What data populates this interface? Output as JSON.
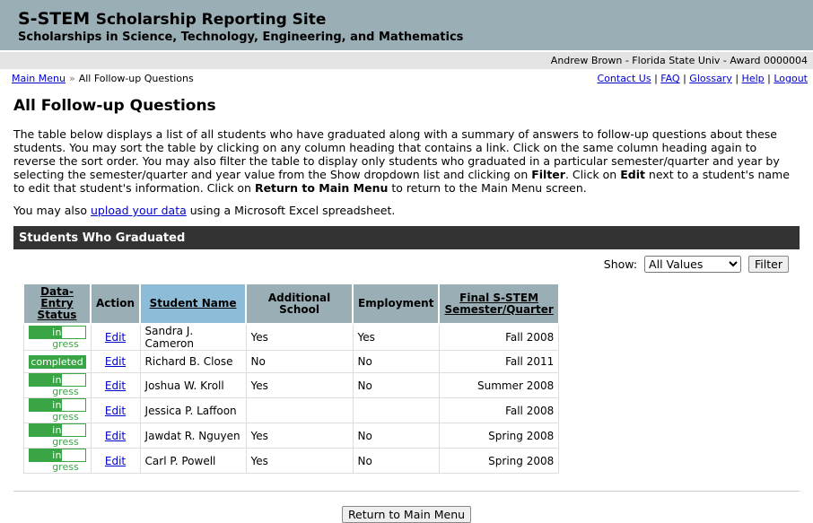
{
  "header": {
    "title_bold": "S-STEM",
    "title_rest": "Scholarship Reporting Site",
    "subtitle": "Scholarships in Science, Technology, Engineering, and Mathematics"
  },
  "user_bar": "Andrew Brown - Florida State Univ - Award 0000004",
  "breadcrumb": {
    "home": "Main Menu",
    "sep": "»",
    "current": "All Follow-up Questions"
  },
  "top_links": [
    "Contact Us",
    "FAQ",
    "Glossary",
    "Help",
    "Logout"
  ],
  "page_title": "All Follow-up Questions",
  "intro": {
    "a": "The table below displays a list of all students who have graduated along with a summary of answers to follow-up questions about these students. You may sort the table by clicking on any column heading that contains a link. Click on the same column heading again to reverse the sort order. You may also filter the table to display only students who graduated in a particular semester/quarter and year by selecting the semester/quarter and year value from the Show dropdown list and clicking on ",
    "filter": "Filter",
    "b": ". Click on ",
    "edit": "Edit",
    "c": " next to a student's name to edit that student's information. Click on ",
    "ret": "Return to Main Menu",
    "d": " to return to the Main Menu screen."
  },
  "upload": {
    "pre": "You may also ",
    "link": "upload your data",
    "post": " using a Microsoft Excel spreadsheet."
  },
  "section_title": "Students Who Graduated",
  "filter": {
    "label": "Show:",
    "value": "All Values",
    "button": "Filter"
  },
  "table": {
    "headers": [
      "Data-Entry Status",
      "Action",
      "Student Name",
      "Additional School",
      "Employment",
      "Final S-STEM Semester/Quarter"
    ],
    "rows": [
      {
        "status": "in progress",
        "action": "Edit",
        "name": "Sandra J. Cameron",
        "school": "Yes",
        "employment": "Yes",
        "final": "Fall 2008"
      },
      {
        "status": "completed",
        "action": "Edit",
        "name": "Richard B. Close",
        "school": "No",
        "employment": "No",
        "final": "Fall 2011"
      },
      {
        "status": "in progress",
        "action": "Edit",
        "name": "Joshua W. Kroll",
        "school": "Yes",
        "employment": "No",
        "final": "Summer 2008"
      },
      {
        "status": "in progress",
        "action": "Edit",
        "name": "Jessica P. Laffoon",
        "school": "",
        "employment": "",
        "final": "Fall 2008"
      },
      {
        "status": "in progress",
        "action": "Edit",
        "name": "Jawdat R. Nguyen",
        "school": "Yes",
        "employment": "No",
        "final": "Spring 2008"
      },
      {
        "status": "in progress",
        "action": "Edit",
        "name": "Carl P. Powell",
        "school": "Yes",
        "employment": "No",
        "final": "Spring 2008"
      }
    ]
  },
  "return_button": "Return to Main Menu",
  "colors": {
    "header_bg": "#9aaeb5",
    "sorted_header": "#8dbcd8",
    "status_green": "#3aa545",
    "section_bar": "#333333"
  }
}
